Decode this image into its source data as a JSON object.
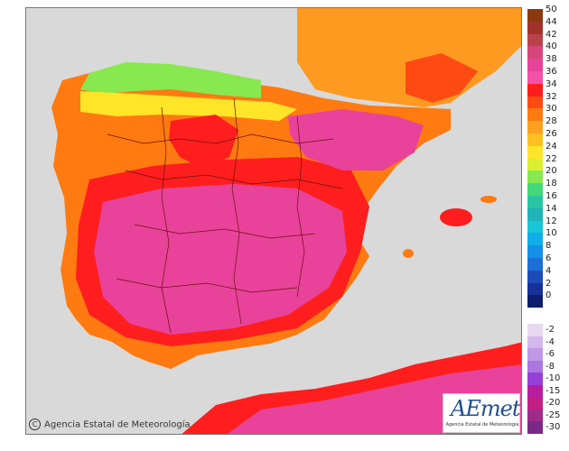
{
  "copyright": "Agencia Estatal de Meteorología",
  "logo": {
    "main": "AEmet",
    "sub": "Agencia Estatal de Meteorología"
  },
  "legend_upper": [
    {
      "label": "50",
      "color": "#8b3a0f"
    },
    {
      "label": "44",
      "color": "#a0342a"
    },
    {
      "label": "42",
      "color": "#b8424c"
    },
    {
      "label": "40",
      "color": "#d6467a"
    },
    {
      "label": "38",
      "color": "#e9429a"
    },
    {
      "label": "36",
      "color": "#f451a8"
    },
    {
      "label": "34",
      "color": "#ff1e1e"
    },
    {
      "label": "32",
      "color": "#ff4a14"
    },
    {
      "label": "30",
      "color": "#ff7a10"
    },
    {
      "label": "28",
      "color": "#ffa020"
    },
    {
      "label": "26",
      "color": "#ffc020"
    },
    {
      "label": "24",
      "color": "#ffe428"
    },
    {
      "label": "22",
      "color": "#d8f030"
    },
    {
      "label": "20",
      "color": "#88e850"
    },
    {
      "label": "18",
      "color": "#44d878"
    },
    {
      "label": "16",
      "color": "#2ac4a0"
    },
    {
      "label": "14",
      "color": "#1eb4b8"
    },
    {
      "label": "12",
      "color": "#18c6d8"
    },
    {
      "label": "10",
      "color": "#10aee8"
    },
    {
      "label": "8",
      "color": "#1490e6"
    },
    {
      "label": "6",
      "color": "#1c6ed8"
    },
    {
      "label": "4",
      "color": "#1c4cba"
    },
    {
      "label": "2",
      "color": "#16309c"
    },
    {
      "label": "0",
      "color": "#0e1e6e"
    }
  ],
  "legend_lower": [
    {
      "label": "-2",
      "color": "#e8d8f0"
    },
    {
      "label": "-4",
      "color": "#d4b8ec"
    },
    {
      "label": "-6",
      "color": "#c098e6"
    },
    {
      "label": "-8",
      "color": "#aa76e0"
    },
    {
      "label": "-10",
      "color": "#9640d8"
    },
    {
      "label": "-15",
      "color": "#b61e9e"
    },
    {
      "label": "-20",
      "color": "#c31e82"
    },
    {
      "label": "-25",
      "color": "#9e2a8a"
    },
    {
      "label": "-30",
      "color": "#7a2a86"
    }
  ]
}
